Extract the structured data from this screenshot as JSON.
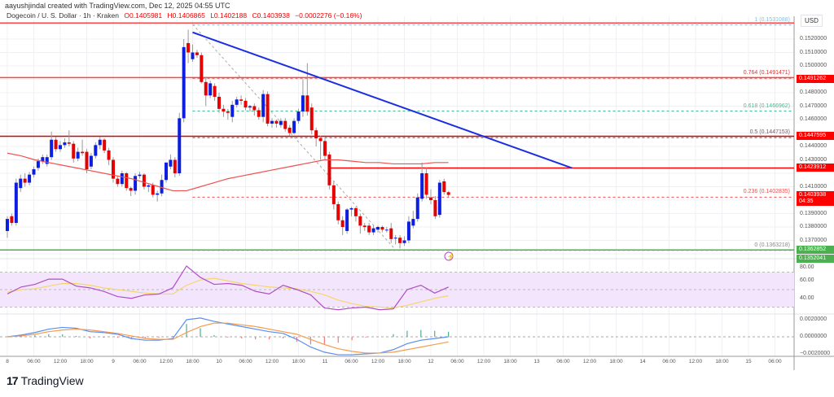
{
  "credit": "aayushjindal created with TradingView.com, Dec 12, 2025 04:55 UTC",
  "legend": {
    "symbol": "Dogecoin / U. S. Dollar · 1h · Kraken",
    "open": "O0.1405981",
    "high": "H0.1406865",
    "low": "L0.1402188",
    "close": "C0.1403938",
    "change": "−0.0002276 (−0.16%)"
  },
  "currency": "USD",
  "colors": {
    "up": "#0c1ee0",
    "down": "#e60000",
    "ma": "#f05050",
    "trend": "#1c2fe0",
    "rsi": "#b04ec4",
    "rsi_ma": "#f5d66b",
    "macd": "#5b8ef0",
    "signal": "#f59b4c",
    "hist_up": "#4caf92",
    "hist_down": "#f07a7a",
    "green": "#4caf50",
    "red": "#ff0000"
  },
  "price_axis": [
    "0.1520000",
    "0.1510000",
    "0.1500000",
    "0.1480000",
    "0.1470000",
    "0.1460000",
    "0.1440000",
    "0.1430000",
    "0.1410000",
    "0.1390000",
    "0.1380000",
    "0.1370000"
  ],
  "price_tags": [
    {
      "value": "0.1491262",
      "color": "#ff0000"
    },
    {
      "value": "0.1447595",
      "color": "#ff0000"
    },
    {
      "value": "0.1423912",
      "color": "#ff0000"
    },
    {
      "value": "0.1403938",
      "color": "#ff0000",
      "countdown": "04:35"
    },
    {
      "value": "0.1362852",
      "color": "#4caf50"
    },
    {
      "value": "0.1352041",
      "color": "#4caf50"
    }
  ],
  "fib_levels": [
    {
      "label": "1 (0.1531088)",
      "price": 0.1531088,
      "color": "#7ec3e6"
    },
    {
      "label": "0.764 (0.1491471)",
      "price": 0.1491471,
      "color": "#e03030"
    },
    {
      "label": "0.618 (0.1466962)",
      "price": 0.1466962,
      "color": "#3fbf8f"
    },
    {
      "label": "0.5 (0.1447153)",
      "price": 0.1447153,
      "color": "#7a5a66"
    },
    {
      "label": "0.236 (0.1402835)",
      "price": 0.1402835,
      "color": "#f05050"
    },
    {
      "label": "0 (0.1363218)",
      "price": 0.1363218,
      "color": "#888888"
    }
  ],
  "horizontal_lines": [
    {
      "price": 0.1532,
      "color": "#ff4444"
    },
    {
      "price": 0.1491262,
      "color": "#ff4444"
    },
    {
      "price": 0.1447595,
      "color": "#dd0000"
    },
    {
      "price": 0.1423912,
      "color": "#ff0000",
      "from_hour": 73
    },
    {
      "price": 0.1362852,
      "color": "#4caf50"
    }
  ],
  "trendline": {
    "from": {
      "hour": 42,
      "price": 0.1525
    },
    "to": {
      "hour": 128,
      "price": 0.14239
    }
  },
  "fib_diagonal": {
    "from": {
      "hour": 42,
      "price": 0.1531
    },
    "to": {
      "hour": 88,
      "price": 0.1363
    }
  },
  "rsi_axis": [
    "80.00",
    "60.00",
    "40.00"
  ],
  "macd_axis": [
    "0.0020000",
    "0.0000000",
    "−0.0020000"
  ],
  "time_axis": [
    "8",
    "06:00",
    "12:00",
    "18:00",
    "9",
    "06:00",
    "12:00",
    "18:00",
    "10",
    "06:00",
    "12:00",
    "18:00",
    "11",
    "06:00",
    "12:00",
    "18:00",
    "12",
    "06:00",
    "12:00",
    "18:00",
    "13",
    "06:00",
    "12:00",
    "18:00",
    "14",
    "06:00",
    "12:00",
    "18:00",
    "15",
    "06:00"
  ],
  "chart_data": {
    "type": "candlestick",
    "interval": "1h",
    "candles": [
      [
        0.1377,
        0.1388,
        0.1372,
        0.1386
      ],
      [
        0.1388,
        0.139,
        0.1381,
        0.1383
      ],
      [
        0.1383,
        0.1416,
        0.1381,
        0.1413
      ],
      [
        0.1409,
        0.1419,
        0.1406,
        0.1416
      ],
      [
        0.1416,
        0.142,
        0.141,
        0.1413
      ],
      [
        0.1413,
        0.1421,
        0.1411,
        0.1419
      ],
      [
        0.1419,
        0.1425,
        0.1417,
        0.1423
      ],
      [
        0.1424,
        0.1431,
        0.1422,
        0.1429
      ],
      [
        0.1429,
        0.1434,
        0.1427,
        0.1432
      ],
      [
        0.1427,
        0.1434,
        0.1425,
        0.1432
      ],
      [
        0.1432,
        0.1451,
        0.143,
        0.1445
      ],
      [
        0.1445,
        0.1447,
        0.1436,
        0.1438
      ],
      [
        0.1438,
        0.1444,
        0.1436,
        0.1441
      ],
      [
        0.1441,
        0.1446,
        0.1439,
        0.1443
      ],
      [
        0.1443,
        0.1452,
        0.144,
        0.1442
      ],
      [
        0.1442,
        0.1444,
        0.1428,
        0.1431
      ],
      [
        0.1431,
        0.1439,
        0.1429,
        0.1436
      ],
      [
        0.1436,
        0.1445,
        0.1433,
        0.1435
      ],
      [
        0.1436,
        0.1438,
        0.142,
        0.1423
      ],
      [
        0.1425,
        0.1435,
        0.1423,
        0.1433
      ],
      [
        0.1433,
        0.1443,
        0.1431,
        0.1441
      ],
      [
        0.1441,
        0.1447,
        0.1438,
        0.1445
      ],
      [
        0.1445,
        0.1446,
        0.1435,
        0.1437
      ],
      [
        0.1437,
        0.1439,
        0.1426,
        0.143
      ],
      [
        0.143,
        0.1432,
        0.1413,
        0.1416
      ],
      [
        0.1416,
        0.1418,
        0.141,
        0.1412
      ],
      [
        0.1412,
        0.1422,
        0.141,
        0.142
      ],
      [
        0.142,
        0.1421,
        0.1407,
        0.1409
      ],
      [
        0.1409,
        0.141,
        0.1403,
        0.1407
      ],
      [
        0.1407,
        0.142,
        0.1404,
        0.1418
      ],
      [
        0.1418,
        0.1421,
        0.1416,
        0.1419
      ],
      [
        0.1419,
        0.142,
        0.1408,
        0.141
      ],
      [
        0.141,
        0.1412,
        0.1406,
        0.1411
      ],
      [
        0.1411,
        0.1413,
        0.1402,
        0.1404
      ],
      [
        0.1404,
        0.1407,
        0.1399,
        0.1405
      ],
      [
        0.1405,
        0.1419,
        0.1403,
        0.1415
      ],
      [
        0.1415,
        0.1428,
        0.1413,
        0.1428
      ],
      [
        0.1425,
        0.1434,
        0.1423,
        0.143
      ],
      [
        0.143,
        0.1432,
        0.1417,
        0.142
      ],
      [
        0.142,
        0.1465,
        0.1418,
        0.1461
      ],
      [
        0.1461,
        0.152,
        0.1458,
        0.1514
      ],
      [
        0.1517,
        0.1527,
        0.1502,
        0.151
      ],
      [
        0.1505,
        0.1516,
        0.1503,
        0.151
      ],
      [
        0.151,
        0.1512,
        0.1506,
        0.1508
      ],
      [
        0.1508,
        0.151,
        0.1487,
        0.1488
      ],
      [
        0.1488,
        0.1492,
        0.147,
        0.1478
      ],
      [
        0.1478,
        0.1489,
        0.1476,
        0.1487
      ],
      [
        0.1485,
        0.1487,
        0.1474,
        0.1477
      ],
      [
        0.1477,
        0.148,
        0.1465,
        0.1468
      ],
      [
        0.1468,
        0.1471,
        0.1462,
        0.1466
      ],
      [
        0.1466,
        0.1468,
        0.146,
        0.1465
      ],
      [
        0.1462,
        0.1474,
        0.1458,
        0.1471
      ],
      [
        0.1471,
        0.1477,
        0.1469,
        0.1475
      ],
      [
        0.1475,
        0.1478,
        0.1471,
        0.1474
      ],
      [
        0.1474,
        0.1476,
        0.1467,
        0.1469
      ],
      [
        0.1469,
        0.1471,
        0.1466,
        0.147
      ],
      [
        0.147,
        0.1472,
        0.1463,
        0.1467
      ],
      [
        0.1467,
        0.1469,
        0.146,
        0.1462
      ],
      [
        0.1462,
        0.1482,
        0.1458,
        0.1479
      ],
      [
        0.1479,
        0.1481,
        0.1455,
        0.1457
      ],
      [
        0.1457,
        0.1461,
        0.1454,
        0.1459
      ],
      [
        0.1459,
        0.146,
        0.1454,
        0.1457
      ],
      [
        0.1456,
        0.1461,
        0.1454,
        0.1459
      ],
      [
        0.1459,
        0.1461,
        0.1451,
        0.1453
      ],
      [
        0.1454,
        0.1456,
        0.1448,
        0.145
      ],
      [
        0.145,
        0.1461,
        0.1449,
        0.1459
      ],
      [
        0.1459,
        0.1468,
        0.1457,
        0.1466
      ],
      [
        0.1466,
        0.149,
        0.1462,
        0.1478
      ],
      [
        0.1478,
        0.1502,
        0.1463,
        0.1466
      ],
      [
        0.1469,
        0.1472,
        0.1449,
        0.1452
      ],
      [
        0.1452,
        0.1454,
        0.144,
        0.1446
      ],
      [
        0.1446,
        0.1448,
        0.143,
        0.1444
      ],
      [
        0.1444,
        0.1447,
        0.143,
        0.1433
      ],
      [
        0.1434,
        0.1436,
        0.1408,
        0.1411
      ],
      [
        0.1411,
        0.1414,
        0.1393,
        0.1397
      ],
      [
        0.1397,
        0.1399,
        0.1382,
        0.1385
      ],
      [
        0.1385,
        0.1388,
        0.1374,
        0.138
      ],
      [
        0.1377,
        0.1394,
        0.1375,
        0.1393
      ],
      [
        0.1393,
        0.1395,
        0.1388,
        0.1394
      ],
      [
        0.1394,
        0.1395,
        0.1384,
        0.1388
      ],
      [
        0.1388,
        0.139,
        0.1375,
        0.1381
      ],
      [
        0.1381,
        0.1383,
        0.1377,
        0.138
      ],
      [
        0.1381,
        0.1383,
        0.1374,
        0.1376
      ],
      [
        0.1376,
        0.1381,
        0.1374,
        0.1379
      ],
      [
        0.1378,
        0.1381,
        0.1376,
        0.138
      ],
      [
        0.138,
        0.1381,
        0.1376,
        0.1378
      ],
      [
        0.1378,
        0.138,
        0.1376,
        0.1378
      ],
      [
        0.1379,
        0.1383,
        0.1368,
        0.1371
      ],
      [
        0.1372,
        0.1374,
        0.1367,
        0.1372
      ],
      [
        0.1372,
        0.1374,
        0.1364,
        0.1368
      ],
      [
        0.1368,
        0.1373,
        0.1366,
        0.137
      ],
      [
        0.137,
        0.1388,
        0.1368,
        0.1384
      ],
      [
        0.1381,
        0.1392,
        0.1379,
        0.1386
      ],
      [
        0.1386,
        0.1405,
        0.1384,
        0.1402
      ],
      [
        0.1401,
        0.1428,
        0.1399,
        0.142
      ],
      [
        0.142,
        0.1424,
        0.1401,
        0.1404
      ],
      [
        0.1402,
        0.1408,
        0.1397,
        0.14
      ],
      [
        0.14,
        0.1403,
        0.1386,
        0.1388
      ],
      [
        0.1389,
        0.1415,
        0.1387,
        0.1413
      ],
      [
        0.1414,
        0.1416,
        0.1404,
        0.1406
      ],
      [
        0.14059,
        0.14069,
        0.14022,
        0.14039
      ]
    ],
    "moving_average": [
      0.1435,
      0.1433,
      0.143,
      0.1428,
      0.1426,
      0.1424,
      0.1422,
      0.142,
      0.1418,
      0.1416,
      0.1413,
      0.141,
      0.1407,
      0.1407,
      0.141,
      0.1413,
      0.1416,
      0.1418,
      0.142,
      0.1422,
      0.1424,
      0.1426,
      0.1428,
      0.143,
      0.143,
      0.1429,
      0.1428,
      0.1428,
      0.1427,
      0.1427,
      0.1427,
      0.1428,
      0.1428
    ],
    "rsi": [
      45,
      53,
      56,
      62,
      62,
      54,
      52,
      48,
      42,
      40,
      44,
      45,
      52,
      77,
      64,
      56,
      57,
      55,
      48,
      45,
      55,
      50,
      44,
      29,
      27,
      29,
      30,
      27,
      28,
      50,
      55,
      46,
      53
    ],
    "rsi_ma": [
      47,
      50,
      51,
      54,
      57,
      57,
      55,
      52,
      50,
      48,
      46,
      45,
      45,
      55,
      61,
      63,
      60,
      57,
      55,
      53,
      52,
      51,
      48,
      44,
      38,
      34,
      31,
      30,
      29,
      32,
      36,
      40,
      43
    ],
    "macd": [
      0,
      0.0002,
      0.0005,
      0.0009,
      0.0011,
      0.001,
      0.0006,
      0.0005,
      0.0003,
      -0.0002,
      -0.0004,
      -0.0004,
      -0.0002,
      0.002,
      0.0022,
      0.0018,
      0.0015,
      0.0012,
      0.0009,
      0.0006,
      0.0004,
      -0.0003,
      -0.0012,
      -0.0018,
      -0.0021,
      -0.0021,
      -0.002,
      -0.0019,
      -0.0015,
      -0.0008,
      -0.0004,
      -0.0002,
      0.0
    ],
    "signal": [
      0,
      0.0001,
      0.0003,
      0.0006,
      0.0008,
      0.0009,
      0.0008,
      0.0006,
      0.0004,
      0.0001,
      -0.0002,
      -0.0003,
      -0.0003,
      0.0005,
      0.0012,
      0.0016,
      0.0016,
      0.0014,
      0.0012,
      0.0009,
      0.0006,
      0.0003,
      -0.0003,
      -0.0009,
      -0.0014,
      -0.0017,
      -0.0019,
      -0.0019,
      -0.0018,
      -0.0015,
      -0.0012,
      -0.0009,
      -0.0006
    ],
    "rsi_bands": [
      70,
      50,
      30
    ]
  },
  "logo": "TradingView"
}
